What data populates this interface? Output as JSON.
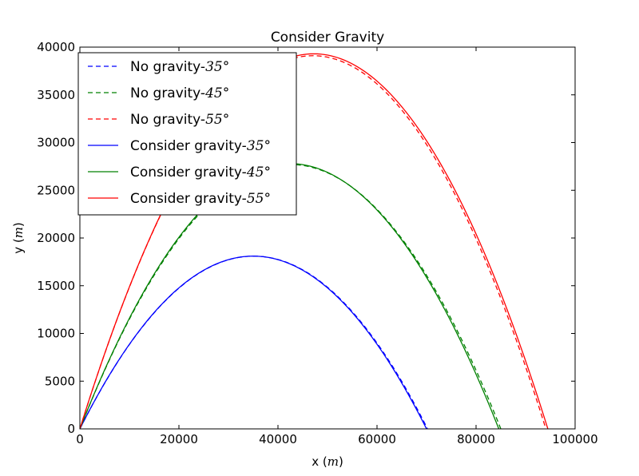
{
  "chart_data": {
    "type": "line",
    "title": "Consider Gravity",
    "xlabel": {
      "text": "x ",
      "unit": "m"
    },
    "ylabel": {
      "text": "y ",
      "unit": "m"
    },
    "xlim": [
      0,
      100000
    ],
    "ylim": [
      0,
      40000
    ],
    "xticks": [
      0,
      20000,
      40000,
      60000,
      80000,
      100000
    ],
    "yticks": [
      0,
      5000,
      10000,
      15000,
      20000,
      25000,
      30000,
      35000,
      40000
    ],
    "grid": false,
    "legend_position": "top-left",
    "series": [
      {
        "name": "No gravity-35°",
        "legend_text": "No gravity-",
        "legend_math": "35°",
        "color": "#0000ff",
        "dash": true,
        "range": 70200,
        "peak": 18100
      },
      {
        "name": "No gravity-45°",
        "legend_text": "No gravity-",
        "legend_math": "45°",
        "color": "#008000",
        "dash": true,
        "range": 85000,
        "peak": 27700
      },
      {
        "name": "No gravity-55°",
        "legend_text": "No gravity-",
        "legend_math": "55°",
        "color": "#ff0000",
        "dash": true,
        "range": 94100,
        "peak": 39100
      },
      {
        "name": "Consider gravity-35°",
        "legend_text": "Consider gravity-",
        "legend_math": "35°",
        "color": "#0000ff",
        "dash": false,
        "range": 70000,
        "peak": 18100
      },
      {
        "name": "Consider gravity-45°",
        "legend_text": "Consider gravity-",
        "legend_math": "45°",
        "color": "#008000",
        "dash": false,
        "range": 84600,
        "peak": 27800
      },
      {
        "name": "Consider gravity-55°",
        "legend_text": "Consider gravity-",
        "legend_math": "55°",
        "color": "#ff0000",
        "dash": false,
        "range": 94500,
        "peak": 39300
      }
    ]
  }
}
